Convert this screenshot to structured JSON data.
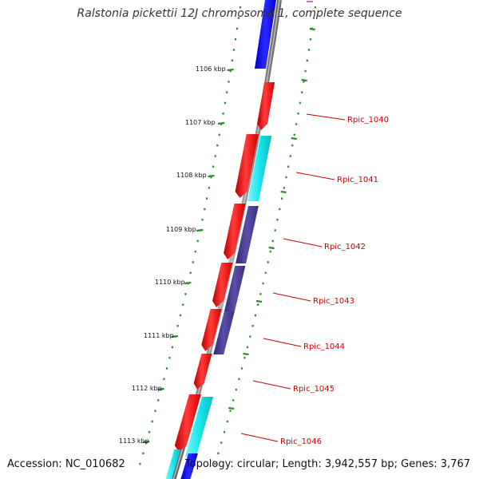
{
  "title": "Ralstonia pickettii 12J chromosome 1, complete sequence",
  "accession": "Accession: NC_010682",
  "summary": "Topology: circular; Length: 3,942,557 bp; Genes: 3,767",
  "colors": {
    "backbone": "#8a8a8a",
    "tick": "#2e8b2e",
    "red_gene": "#ff1a1a",
    "cyan_gene": "#19e6ec",
    "blue_gene": "#1010ee",
    "slate_gene": "#4b3f96",
    "label_red": "#cc0000"
  },
  "scale_labels": [
    "1106 kbp",
    "1107 kbp",
    "1108 kbp",
    "1109 kbp",
    "1110 kbp",
    "1111 kbp",
    "1112 kbp",
    "1113 kbp"
  ],
  "gene_labels": [
    "Rpic_1040",
    "Rpic_1041",
    "Rpic_1042",
    "Rpic_1043",
    "Rpic_1044",
    "Rpic_1045",
    "Rpic_1046"
  ]
}
